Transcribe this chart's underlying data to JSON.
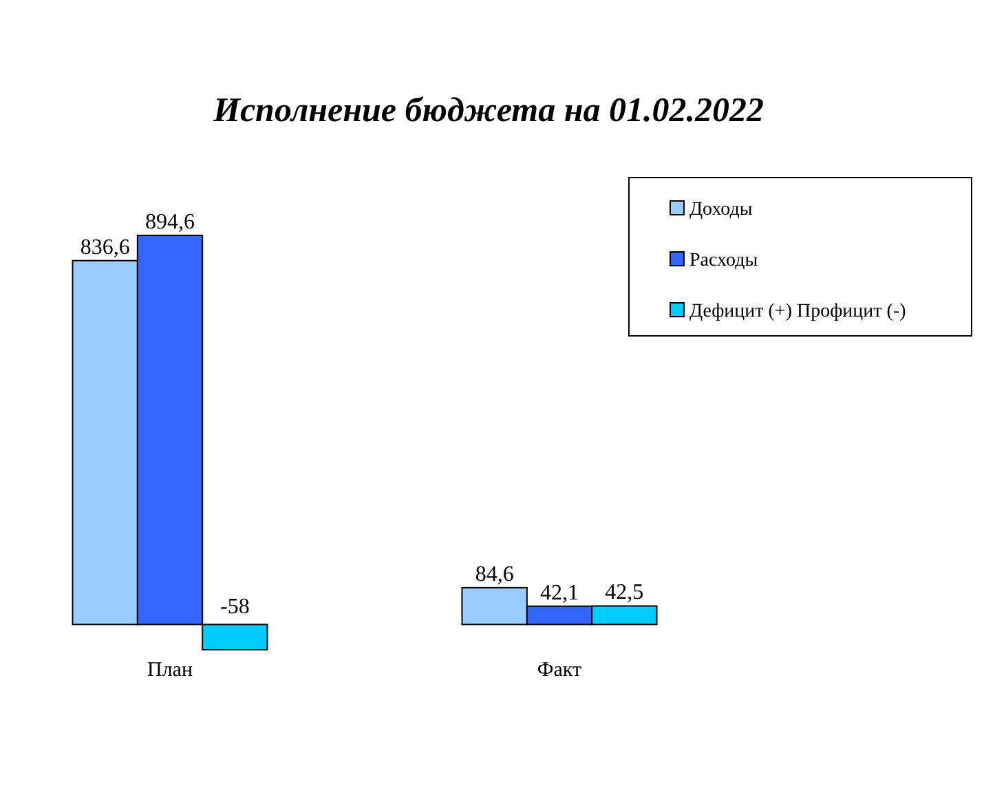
{
  "chart_data": {
    "type": "bar",
    "title": "Исполнение бюджета на 01.02.2022",
    "categories": [
      "План",
      "Факт"
    ],
    "series": [
      {
        "name": "Доходы",
        "color": "#99ccff",
        "values": [
          836.6,
          84.6
        ],
        "value_labels": [
          "836,6",
          "84,6"
        ]
      },
      {
        "name": "Расходы",
        "color": "#3366ff",
        "values": [
          894.6,
          42.1
        ],
        "value_labels": [
          "894,6",
          "42,1"
        ]
      },
      {
        "name": "Дефицит (+) Профицит (-)",
        "color": "#00ccff",
        "values": [
          -58,
          42.5
        ],
        "value_labels": [
          "-58",
          "42,5"
        ]
      }
    ],
    "legend": "top right"
  }
}
